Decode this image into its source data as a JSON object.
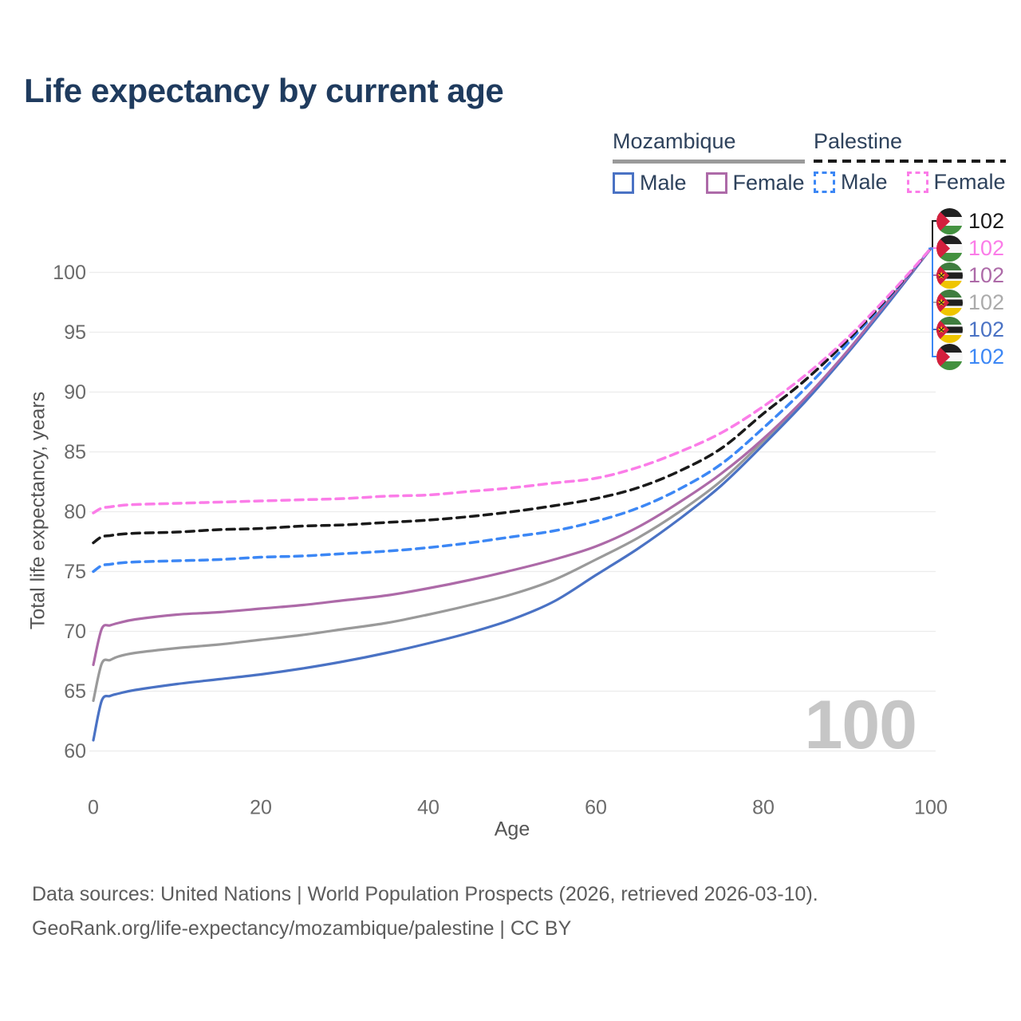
{
  "title": "Life expectancy by current age",
  "legend": {
    "groups": [
      {
        "name": "Mozambique",
        "line_style": "solid",
        "line_color": "#9a9a9a",
        "items": [
          {
            "label": "Male",
            "color": "#4a72c4",
            "dashed": false
          },
          {
            "label": "Female",
            "color": "#ad6aa8",
            "dashed": false
          }
        ]
      },
      {
        "name": "Palestine",
        "line_style": "dashed",
        "line_color": "#1a1a1a",
        "items": [
          {
            "label": "Male",
            "color": "#3c87f5",
            "dashed": true
          },
          {
            "label": "Female",
            "color": "#fb7ce8",
            "dashed": true
          }
        ]
      }
    ]
  },
  "chart_data": {
    "type": "line",
    "title": "Life expectancy by current age",
    "xlabel": "Age",
    "ylabel": "Total life expectancy, years",
    "xlim": [
      0,
      100
    ],
    "ylim": [
      60,
      102
    ],
    "x_ticks": [
      0,
      20,
      40,
      60,
      80,
      100
    ],
    "y_ticks": [
      60,
      65,
      70,
      75,
      80,
      85,
      90,
      95,
      100
    ],
    "grid": "horizontal",
    "gridline_color": "#ececec",
    "x": [
      0,
      1,
      2,
      3,
      5,
      10,
      15,
      20,
      25,
      30,
      35,
      40,
      45,
      50,
      55,
      60,
      65,
      70,
      75,
      80,
      85,
      90,
      95,
      100
    ],
    "series": [
      {
        "id": "moz-both",
        "name": "Mozambique (both sexes)",
        "country": "Mozambique",
        "color": "#9a9a9a",
        "dashed": false,
        "values": [
          64.2,
          67.3,
          67.6,
          67.9,
          68.2,
          68.6,
          68.9,
          69.3,
          69.7,
          70.2,
          70.7,
          71.4,
          72.2,
          73.1,
          74.3,
          76.0,
          77.8,
          80.0,
          82.6,
          85.9,
          89.4,
          93.3,
          97.6,
          102
        ]
      },
      {
        "id": "moz-male",
        "name": "Mozambique Male",
        "country": "Mozambique",
        "color": "#4a72c4",
        "dashed": false,
        "values": [
          60.9,
          64.2,
          64.6,
          64.8,
          65.1,
          65.6,
          66.0,
          66.4,
          66.9,
          67.5,
          68.2,
          69.0,
          69.9,
          71.0,
          72.5,
          74.7,
          76.9,
          79.4,
          82.2,
          85.6,
          89.2,
          93.2,
          97.5,
          102
        ]
      },
      {
        "id": "moz-female",
        "name": "Mozambique Female",
        "country": "Mozambique",
        "color": "#ad6aa8",
        "dashed": false,
        "values": [
          67.2,
          70.2,
          70.5,
          70.7,
          71.0,
          71.4,
          71.6,
          71.9,
          72.2,
          72.6,
          73.0,
          73.6,
          74.3,
          75.1,
          76.0,
          77.1,
          78.7,
          80.8,
          83.2,
          86.1,
          89.5,
          93.4,
          97.7,
          102
        ]
      },
      {
        "id": "pal-male",
        "name": "Palestine Male",
        "country": "Palestine",
        "color": "#3c87f5",
        "dashed": true,
        "values": [
          75.0,
          75.5,
          75.6,
          75.7,
          75.8,
          75.9,
          76.0,
          76.2,
          76.3,
          76.5,
          76.7,
          77.0,
          77.4,
          77.9,
          78.4,
          79.2,
          80.3,
          81.9,
          84.0,
          87.0,
          90.3,
          94.0,
          97.9,
          102
        ]
      },
      {
        "id": "pal-both",
        "name": "Palestine (both sexes)",
        "country": "Palestine",
        "color": "#1a1a1a",
        "dashed": true,
        "values": [
          77.4,
          77.9,
          78.0,
          78.1,
          78.2,
          78.3,
          78.5,
          78.6,
          78.8,
          78.9,
          79.1,
          79.3,
          79.6,
          80.0,
          80.5,
          81.1,
          82.0,
          83.4,
          85.3,
          88.2,
          91.0,
          94.3,
          98.0,
          102
        ]
      },
      {
        "id": "pal-female",
        "name": "Palestine Female",
        "country": "Palestine",
        "color": "#fb7ce8",
        "dashed": true,
        "values": [
          79.9,
          80.3,
          80.4,
          80.5,
          80.6,
          80.7,
          80.8,
          80.9,
          81.0,
          81.1,
          81.3,
          81.4,
          81.7,
          82.0,
          82.4,
          82.8,
          83.7,
          85.0,
          86.6,
          88.8,
          91.4,
          94.5,
          98.1,
          102
        ]
      }
    ],
    "end_labels": [
      {
        "series": "pal-both",
        "flag": "palestine",
        "value": "102",
        "color": "#1a1a1a"
      },
      {
        "series": "pal-female",
        "flag": "palestine",
        "value": "102",
        "color": "#fb7ce8"
      },
      {
        "series": "moz-female",
        "flag": "mozambique",
        "value": "102",
        "color": "#ad6aa8"
      },
      {
        "series": "moz-both",
        "flag": "mozambique",
        "value": "102",
        "color": "#ababab"
      },
      {
        "series": "moz-male",
        "flag": "mozambique",
        "value": "102",
        "color": "#4a72c4"
      },
      {
        "series": "pal-male",
        "flag": "palestine",
        "value": "102",
        "color": "#3c87f5"
      }
    ]
  },
  "watermark": "100",
  "footer": {
    "line1": "Data sources: United Nations | World Population Prospects (2026, retrieved 2026-03-10).",
    "line2": "GeoRank.org/life-expectancy/mozambique/palestine | CC BY"
  }
}
